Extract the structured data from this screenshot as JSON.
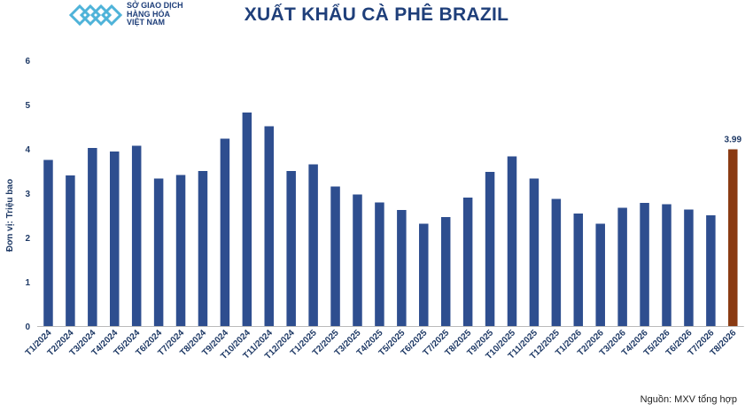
{
  "header": {
    "logo_lines": [
      "SỞ GIAO DỊCH",
      "HÀNG HÓA",
      "VIỆT NAM"
    ],
    "title": "XUẤT KHẨU CÀ PHÊ BRAZIL"
  },
  "footer": {
    "source": "Nguồn: MXV tổng hợp"
  },
  "colors": {
    "bar": "#2e4e8f",
    "highlight": "#8a3a12",
    "text": "#1f3a66"
  },
  "chart_data": {
    "type": "bar",
    "title": "XUẤT KHẨU CÀ PHÊ BRAZIL",
    "ylabel": "Đơn vị: Triệu bao",
    "xlabel": "",
    "ylim": [
      0,
      6
    ],
    "yticks": [
      0,
      1,
      2,
      3,
      4,
      5,
      6
    ],
    "grid": false,
    "categories": [
      "T1/2024",
      "T2/2024",
      "T3/2024",
      "T4/2024",
      "T5/2024",
      "T6/2024",
      "T7/2024",
      "T8/2024",
      "T9/2024",
      "T10/2024",
      "T11/2024",
      "T12/2024",
      "T1/2025",
      "T2/2025",
      "T3/2025",
      "T4/2025",
      "T5/2025",
      "T6/2025",
      "T7/2025",
      "T8/2025",
      "T9/2025",
      "T10/2025",
      "T11/2025",
      "T12/2025",
      "T1/2026",
      "T2/2026",
      "T3/2026",
      "T4/2026",
      "T5/2026",
      "T6/2026",
      "T7/2026",
      "T8/2026"
    ],
    "values": [
      3.75,
      3.4,
      4.02,
      3.94,
      4.07,
      3.33,
      3.41,
      3.5,
      4.23,
      4.82,
      4.51,
      3.5,
      3.65,
      3.15,
      2.97,
      2.79,
      2.62,
      2.31,
      2.46,
      2.9,
      3.48,
      3.83,
      3.33,
      2.87,
      2.54,
      2.31,
      2.67,
      2.78,
      2.75,
      2.63,
      2.5,
      3.99
    ],
    "highlight_index": 31,
    "data_labels": [
      {
        "index": 31,
        "text": "3.99"
      }
    ]
  }
}
